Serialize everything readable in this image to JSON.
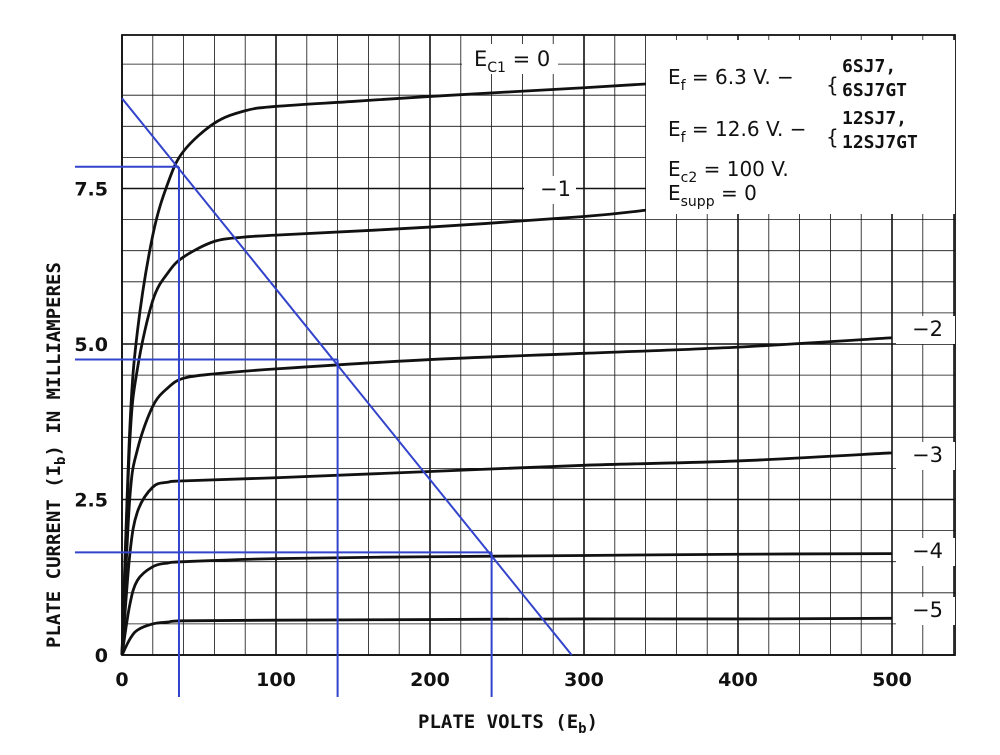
{
  "chart_data": {
    "type": "line",
    "title": "",
    "xlabel": "PLATE VOLTS (E_b)",
    "ylabel": "PLATE CURRENT (I_b) IN MILLIAMPERES",
    "xlabel_parts": {
      "main": "PLATE VOLTS (E",
      "sub": "b",
      "close": ")"
    },
    "ylabel_parts": {
      "main": "PLATE CURRENT (I",
      "sub": "b",
      "close": ") IN MILLIAMPERES"
    },
    "xlim": [
      0,
      540
    ],
    "ylim": [
      0,
      10
    ],
    "x_ticks": [
      0,
      100,
      200,
      300,
      400,
      500
    ],
    "x_tick_labels": [
      "0",
      "100",
      "200",
      "300",
      "400",
      "500"
    ],
    "y_ticks": [
      0,
      2.5,
      5.0,
      7.5
    ],
    "y_tick_labels": [
      "0",
      "2.5",
      "5.0",
      "7.5"
    ],
    "grid": true,
    "series": [
      {
        "name": "Ec1 = 0",
        "label_main": "E",
        "label_sub": "C1",
        "label_tail": " = 0",
        "x": [
          0,
          5,
          10,
          20,
          30,
          40,
          60,
          80,
          100,
          150,
          200,
          300,
          340
        ],
        "y": [
          0,
          3.6,
          5.2,
          6.75,
          7.6,
          8.1,
          8.55,
          8.75,
          8.82,
          8.9,
          8.98,
          9.12,
          9.18
        ]
      },
      {
        "name": "-1",
        "label": "−1",
        "x": [
          0,
          5,
          10,
          20,
          30,
          40,
          60,
          80,
          100,
          200,
          300,
          340
        ],
        "y": [
          0,
          3.4,
          4.6,
          5.7,
          6.15,
          6.4,
          6.65,
          6.72,
          6.75,
          6.88,
          7.05,
          7.15
        ]
      },
      {
        "name": "-2",
        "label": "−2",
        "x": [
          0,
          5,
          10,
          20,
          30,
          40,
          60,
          100,
          200,
          300,
          400,
          500
        ],
        "y": [
          0,
          2.5,
          3.3,
          4.0,
          4.3,
          4.45,
          4.52,
          4.6,
          4.75,
          4.85,
          4.95,
          5.1
        ]
      },
      {
        "name": "-3",
        "label": "−3",
        "x": [
          0,
          5,
          10,
          20,
          30,
          40,
          100,
          200,
          300,
          400,
          500
        ],
        "y": [
          0,
          1.6,
          2.3,
          2.7,
          2.78,
          2.8,
          2.85,
          2.95,
          3.05,
          3.12,
          3.25
        ]
      },
      {
        "name": "-4",
        "label": "−4",
        "x": [
          0,
          5,
          10,
          20,
          30,
          40,
          100,
          200,
          300,
          400,
          500
        ],
        "y": [
          0,
          0.8,
          1.2,
          1.42,
          1.48,
          1.5,
          1.55,
          1.58,
          1.6,
          1.62,
          1.63
        ]
      },
      {
        "name": "-5",
        "label": "−5",
        "x": [
          0,
          5,
          10,
          20,
          30,
          40,
          100,
          200,
          300,
          400,
          500
        ],
        "y": [
          0,
          0.25,
          0.4,
          0.5,
          0.53,
          0.55,
          0.56,
          0.57,
          0.58,
          0.58,
          0.59
        ]
      }
    ],
    "load_line": {
      "x": [
        0,
        292
      ],
      "y": [
        8.95,
        0
      ]
    },
    "operating_points": [
      {
        "x": 37,
        "y": 7.85
      },
      {
        "x": 140,
        "y": 4.75
      },
      {
        "x": 240,
        "y": 1.65
      }
    ],
    "annotations": {
      "ef1_main": "E",
      "ef1_sub": "f",
      "ef1_value": " =  6.3 V. −",
      "ef1_tubes": [
        "6SJ7,",
        "6SJ7GT"
      ],
      "ef2_main": "E",
      "ef2_sub": "f",
      "ef2_value": " = 12.6 V. −",
      "ef2_tubes": [
        "12SJ7,",
        "12SJ7GT"
      ],
      "ec2_main": "E",
      "ec2_sub": "c2",
      "ec2_value": " = 100 V.",
      "esupp_main": "E",
      "esupp_sub": "supp",
      "esupp_value": " = 0"
    },
    "colors": {
      "curve": "#111111",
      "grid": "#111111",
      "load_line": "#3344cc"
    }
  }
}
